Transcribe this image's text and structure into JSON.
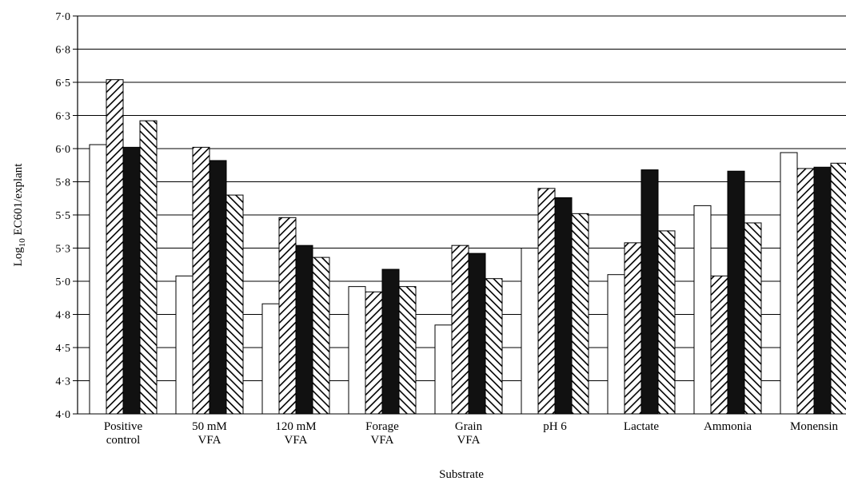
{
  "chart_data": {
    "type": "bar",
    "title": "",
    "xlabel": "Substrate",
    "ylabel_parts": {
      "before": "Log",
      "sub": "10",
      "after": " EC601/explant"
    },
    "ylim": [
      4.0,
      7.0
    ],
    "y_ticks": [
      {
        "value": 4.0,
        "label": "4·0"
      },
      {
        "value": 4.25,
        "label": "4·3"
      },
      {
        "value": 4.5,
        "label": "4·5"
      },
      {
        "value": 4.75,
        "label": "4·8"
      },
      {
        "value": 5.0,
        "label": "5·0"
      },
      {
        "value": 5.25,
        "label": "5·3"
      },
      {
        "value": 5.5,
        "label": "5·5"
      },
      {
        "value": 5.75,
        "label": "5·8"
      },
      {
        "value": 6.0,
        "label": "6·0"
      },
      {
        "value": 6.25,
        "label": "6·3"
      },
      {
        "value": 6.5,
        "label": "6·5"
      },
      {
        "value": 6.75,
        "label": "6·8"
      },
      {
        "value": 7.0,
        "label": "7·0"
      }
    ],
    "grid": "horizontal",
    "categories": [
      [
        "Positive",
        "control"
      ],
      [
        "50 mM",
        "VFA"
      ],
      [
        "120 mM",
        "VFA"
      ],
      [
        "Forage",
        "VFA"
      ],
      [
        "Grain",
        "VFA"
      ],
      [
        "pH 6"
      ],
      [
        "Lactate"
      ],
      [
        "Ammonia"
      ],
      [
        "Monensin"
      ]
    ],
    "series": [
      {
        "pattern": "white",
        "values": [
          6.03,
          5.04,
          4.83,
          4.96,
          4.67,
          5.25,
          5.05,
          5.57,
          5.97
        ]
      },
      {
        "pattern": "hatch-ne",
        "values": [
          6.52,
          6.01,
          5.48,
          4.92,
          5.27,
          5.7,
          5.29,
          5.04,
          5.85
        ]
      },
      {
        "pattern": "black",
        "values": [
          6.01,
          5.91,
          5.27,
          5.09,
          5.21,
          5.63,
          5.84,
          5.83,
          5.86
        ]
      },
      {
        "pattern": "hatch-nw",
        "values": [
          6.21,
          5.65,
          5.18,
          4.96,
          5.02,
          5.51,
          5.38,
          5.44,
          5.89
        ]
      }
    ],
    "colors": {
      "bar_stroke": "#000000",
      "white_fill": "#ffffff",
      "black_fill": "#111111",
      "grid": "#000000"
    }
  }
}
